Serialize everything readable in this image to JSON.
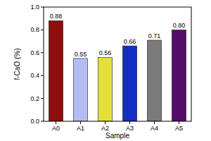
{
  "chart_data": {
    "type": "bar",
    "x_label": "Sample",
    "y_label": "f-CaO (%)",
    "categories": [
      "A0",
      "A1",
      "A2",
      "A3",
      "A4",
      "A5"
    ],
    "values": [
      0.88,
      0.55,
      0.56,
      0.66,
      0.71,
      0.8
    ],
    "value_labels": [
      "0.88",
      "0.55",
      "0.56",
      "0.66",
      "0.71",
      "0.80"
    ],
    "colors": [
      "#8f0d0d",
      "#b5bcf4",
      "#e4df3b",
      "#1430c4",
      "#7b7b7b",
      "#560b66"
    ],
    "ylim": [
      0,
      1
    ],
    "yticks": [
      {
        "value": 0,
        "label": "0.0"
      },
      0.2,
      0.4,
      0.6,
      0.8,
      {
        "value": 1,
        "label": "1.0"
      }
    ],
    "data_labels": true,
    "grid": false
  }
}
